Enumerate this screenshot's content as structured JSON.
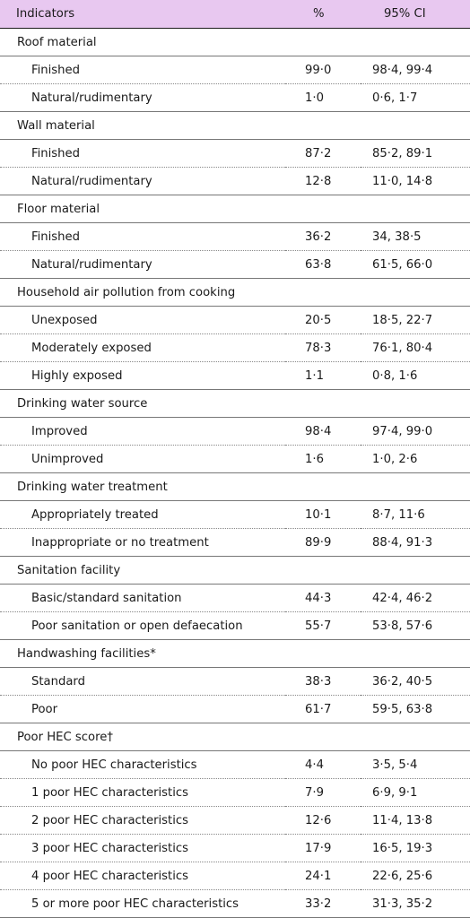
{
  "header": {
    "indicators": "Indicators",
    "percent": "%",
    "ci": "95% CI"
  },
  "groups": [
    {
      "label": "Roof material",
      "items": [
        {
          "label": "Finished",
          "pct": "99·0",
          "ci": "98·4, 99·4"
        },
        {
          "label": "Natural/rudimentary",
          "pct": "1·0",
          "ci": "0·6, 1·7"
        }
      ]
    },
    {
      "label": "Wall material",
      "items": [
        {
          "label": "Finished",
          "pct": "87·2",
          "ci": "85·2, 89·1"
        },
        {
          "label": "Natural/rudimentary",
          "pct": "12·8",
          "ci": "11·0, 14·8"
        }
      ]
    },
    {
      "label": "Floor material",
      "items": [
        {
          "label": "Finished",
          "pct": "36·2",
          "ci": "34, 38·5"
        },
        {
          "label": "Natural/rudimentary",
          "pct": "63·8",
          "ci": "61·5, 66·0"
        }
      ]
    },
    {
      "label": "Household air pollution from cooking",
      "items": [
        {
          "label": "Unexposed",
          "pct": "20·5",
          "ci": "18·5, 22·7"
        },
        {
          "label": "Moderately exposed",
          "pct": "78·3",
          "ci": "76·1, 80·4"
        },
        {
          "label": "Highly exposed",
          "pct": "1·1",
          "ci": "0·8, 1·6"
        }
      ]
    },
    {
      "label": "Drinking water source",
      "items": [
        {
          "label": "Improved",
          "pct": "98·4",
          "ci": "97·4, 99·0"
        },
        {
          "label": "Unimproved",
          "pct": "1·6",
          "ci": "1·0, 2·6"
        }
      ]
    },
    {
      "label": "Drinking water treatment",
      "items": [
        {
          "label": "Appropriately treated",
          "pct": "10·1",
          "ci": "8·7, 11·6"
        },
        {
          "label": "Inappropriate or no treatment",
          "pct": "89·9",
          "ci": "88·4, 91·3"
        }
      ]
    },
    {
      "label": "Sanitation facility",
      "items": [
        {
          "label": "Basic/standard sanitation",
          "pct": "44·3",
          "ci": "42·4, 46·2"
        },
        {
          "label": "Poor sanitation or open defaecation",
          "pct": "55·7",
          "ci": "53·8, 57·6"
        }
      ]
    },
    {
      "label": "Handwashing facilities*",
      "items": [
        {
          "label": "Standard",
          "pct": "38·3",
          "ci": "36·2, 40·5"
        },
        {
          "label": "Poor",
          "pct": "61·7",
          "ci": "59·5, 63·8"
        }
      ]
    },
    {
      "label": "Poor HEC score†",
      "items": [
        {
          "label": "No poor HEC characteristics",
          "pct": "4·4",
          "ci": "3·5, 5·4"
        },
        {
          "label": "1 poor HEC characteristics",
          "pct": "7·9",
          "ci": "6·9, 9·1"
        },
        {
          "label": "2 poor HEC characteristics",
          "pct": "12·6",
          "ci": "11·4, 13·8"
        },
        {
          "label": "3 poor HEC characteristics",
          "pct": "17·9",
          "ci": "16·5, 19·3"
        },
        {
          "label": "4 poor HEC characteristics",
          "pct": "24·1",
          "ci": "22·6, 25·6"
        },
        {
          "label": "5 or more poor HEC characteristics",
          "pct": "33·2",
          "ci": "31·3, 35·2"
        }
      ]
    }
  ]
}
